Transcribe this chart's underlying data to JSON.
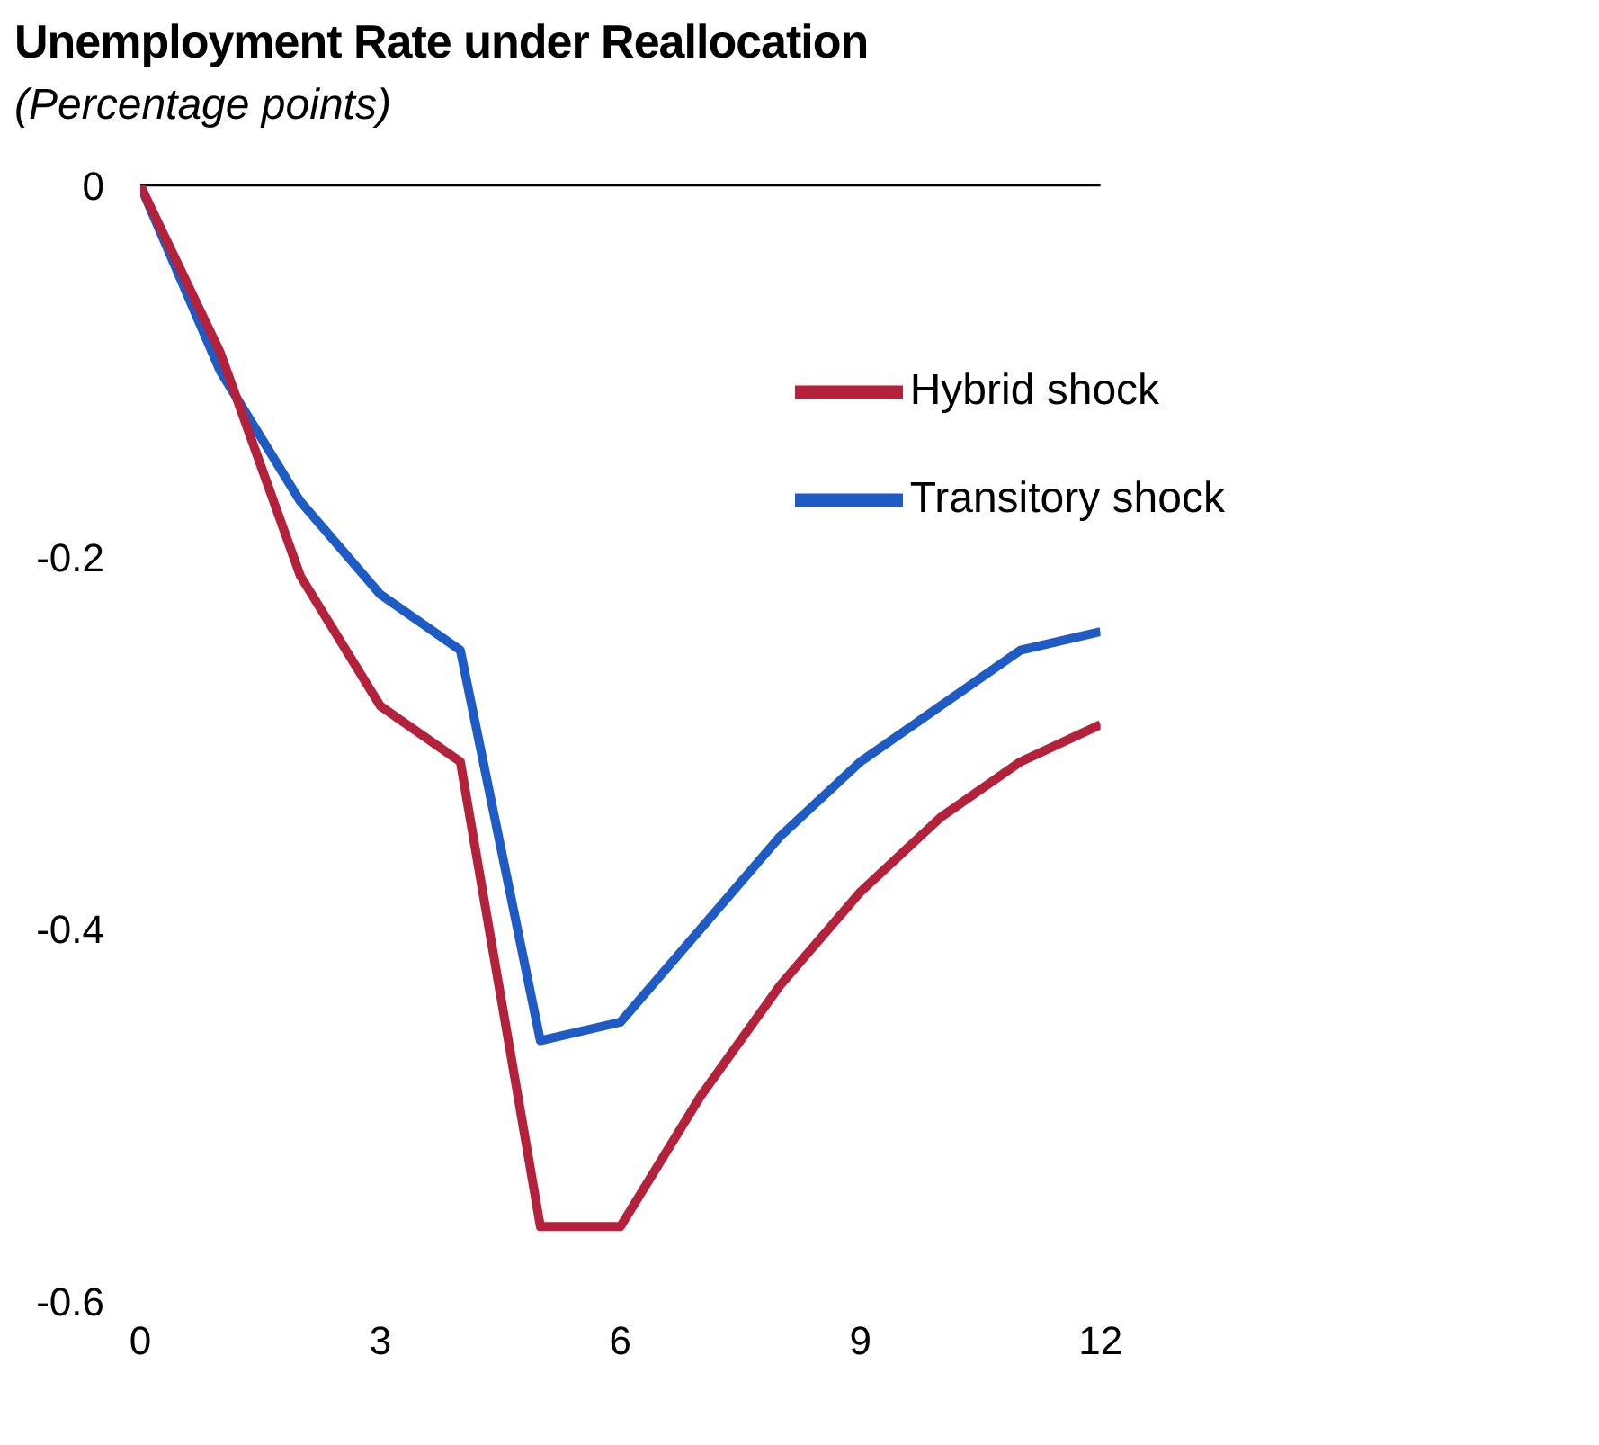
{
  "chart_data": {
    "type": "line",
    "title": "Unemployment Rate under Reallocation",
    "subtitle": "(Percentage points)",
    "x": [
      0,
      1,
      2,
      3,
      4,
      5,
      6,
      7,
      8,
      9,
      10,
      11,
      12
    ],
    "series": [
      {
        "name": "Transitory shock",
        "color": "#1f5bc4",
        "values": [
          0,
          -0.1,
          -0.17,
          -0.22,
          -0.25,
          -0.46,
          -0.45,
          -0.4,
          -0.35,
          -0.31,
          -0.28,
          -0.25,
          -0.24
        ]
      },
      {
        "name": "Hybrid shock",
        "color": "#b3213a",
        "values": [
          0,
          -0.09,
          -0.21,
          -0.28,
          -0.31,
          -0.56,
          -0.56,
          -0.49,
          -0.43,
          -0.38,
          -0.34,
          -0.31,
          -0.29
        ]
      }
    ],
    "xlim": [
      0,
      12
    ],
    "xticks": [
      0,
      3,
      6,
      9,
      12
    ],
    "ylim": [
      -0.6,
      0
    ],
    "yticks": [
      0,
      -0.2,
      -0.4,
      -0.6
    ],
    "ref_lines": [
      {
        "axis": "y",
        "value": 0,
        "color": "#000000"
      }
    ],
    "grid": false,
    "legend": "top right",
    "marker": "none",
    "line_style": "solid"
  }
}
